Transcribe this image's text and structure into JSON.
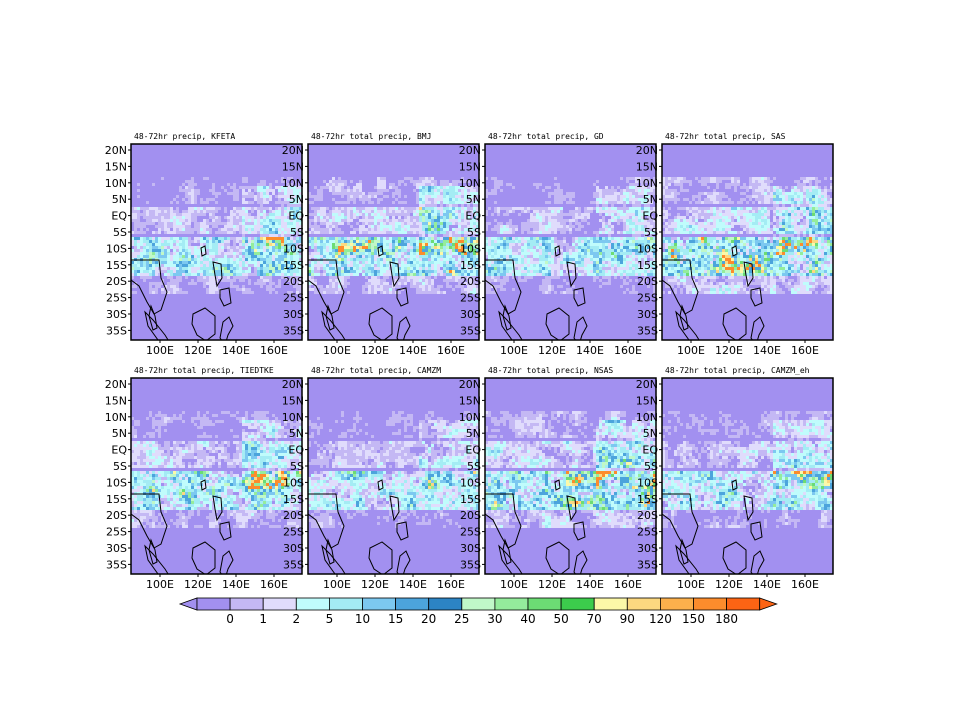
{
  "lat_labels": [
    "20N",
    "15N",
    "10N",
    "5N",
    "EQ",
    "5S",
    "10S",
    "15S",
    "20S",
    "25S",
    "30S",
    "35S"
  ],
  "lon_labels": [
    "100E",
    "120E",
    "140E",
    "160E"
  ],
  "lon_range": [
    88,
    178
  ],
  "lat_range": [
    -39,
    22
  ],
  "panels": [
    {
      "title": "48-72hr precip, KFETA",
      "seed": 11,
      "activity": 1.0
    },
    {
      "title": "48-72hr total precip, BMJ",
      "seed": 23,
      "activity": 1.15
    },
    {
      "title": "48-72hr total precip, GD",
      "seed": 37,
      "activity": 0.95
    },
    {
      "title": "48-72hr total precip, SAS",
      "seed": 41,
      "activity": 1.25
    },
    {
      "title": "48-72hr total precip, TIEDTKE",
      "seed": 53,
      "activity": 1.05
    },
    {
      "title": "48-72hr total precip, CAMZM",
      "seed": 67,
      "activity": 0.9
    },
    {
      "title": "48-72hr total precip, NSAS",
      "seed": 79,
      "activity": 1.2
    },
    {
      "title": "48-72hr total precip, CAMZM_eh",
      "seed": 83,
      "activity": 1.0
    }
  ],
  "colorbar": {
    "labels": [
      "0",
      "1",
      "2",
      "5",
      "10",
      "15",
      "20",
      "25",
      "30",
      "40",
      "50",
      "70",
      "90",
      "120",
      "150",
      "180"
    ],
    "colors": [
      "#a290f0",
      "#c4b8f4",
      "#e0dcfc",
      "#c0fcfc",
      "#a4ecf4",
      "#7cc8f0",
      "#4ca4dc",
      "#2c84c4",
      "#c0f8c8",
      "#94ec9c",
      "#6cdc74",
      "#3ccc4c",
      "#fcf8a8",
      "#fcd880",
      "#fcb04c",
      "#fc8c2c",
      "#fc6414"
    ],
    "under_color": "#a290f0",
    "over_color": "#fc6414"
  }
}
